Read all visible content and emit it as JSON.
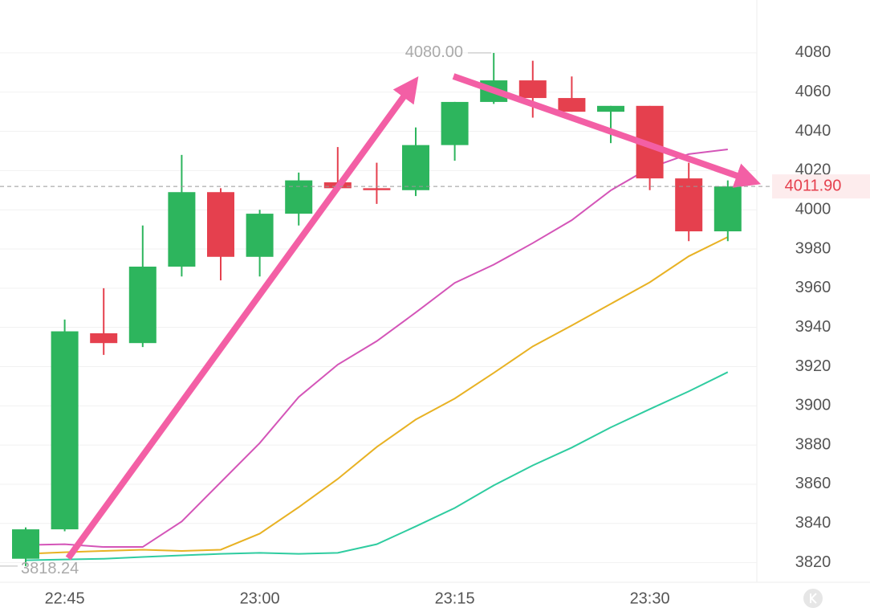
{
  "chart_data": {
    "type": "candlestick",
    "categories": [
      null,
      "22:45",
      null,
      null,
      null,
      null,
      "23:00",
      null,
      null,
      null,
      null,
      "23:15",
      null,
      null,
      null,
      null,
      "23:30",
      null,
      null
    ],
    "candles": {
      "open": [
        3822,
        3837,
        3937,
        3932,
        3971,
        4009,
        3976,
        3998,
        4014,
        4011,
        4010,
        4033,
        4055,
        4066,
        4057,
        4050,
        4053,
        4016,
        3989
      ],
      "high": [
        3838,
        3944,
        3960,
        3992,
        4028,
        4011,
        4000,
        4019,
        4032,
        4024,
        4042,
        4055,
        4080,
        4076,
        4068,
        4053,
        4053,
        4024,
        4015
      ],
      "low": [
        3818.24,
        3836,
        3926,
        3930,
        3966,
        3964,
        3966,
        3992,
        4010,
        4003,
        4007,
        4025,
        4054,
        4047,
        4050,
        4034,
        4010,
        3984,
        3984
      ],
      "close": [
        3837,
        3938,
        3932,
        3971,
        4009,
        3976,
        3998,
        4015,
        4011,
        4010,
        4033,
        4055,
        4066,
        4057,
        4050,
        4053,
        4016,
        3989,
        4011.9
      ]
    },
    "up_color": "#2db55d",
    "down_color": "#e5404e",
    "lines": [
      {
        "color": "#d455b8",
        "values": [
          3829,
          3829.4,
          3828,
          3828,
          3841,
          3861,
          3881,
          3904.5,
          3921,
          3933,
          3947.6,
          3962.7,
          3972,
          3983,
          3994.7,
          4009.9,
          4021.4,
          4028.4,
          4030.8
        ]
      },
      {
        "color": "#e8b224",
        "values": [
          3824.5,
          3825.3,
          3826,
          3826.6,
          3826,
          3826.6,
          3834.8,
          3848.3,
          3862.7,
          3879,
          3893,
          3903.7,
          3916.8,
          3930.3,
          3941,
          3952,
          3963,
          3976.3,
          3986.1
        ]
      },
      {
        "color": "#2fcca0",
        "values": [
          3821.2,
          3821.6,
          3822,
          3822.9,
          3823.7,
          3824.5,
          3825,
          3824.5,
          3825,
          3829.4,
          3838.5,
          3847.9,
          3859.4,
          3869.6,
          3878.7,
          3889,
          3898.3,
          3907.4,
          3917.2
        ]
      }
    ],
    "high_label": {
      "value": 4080,
      "label": "4080.00"
    },
    "low_label": {
      "value": 3818.24,
      "label": "3818.24"
    },
    "last_price": {
      "value": 4011.9,
      "label": "4011.90"
    },
    "ylim": [
      3810,
      4107
    ],
    "yticks": [
      3820,
      3840,
      3860,
      3880,
      3900,
      3920,
      3940,
      3960,
      3980,
      4000,
      4020,
      4040,
      4060,
      4080
    ],
    "grid": true
  }
}
